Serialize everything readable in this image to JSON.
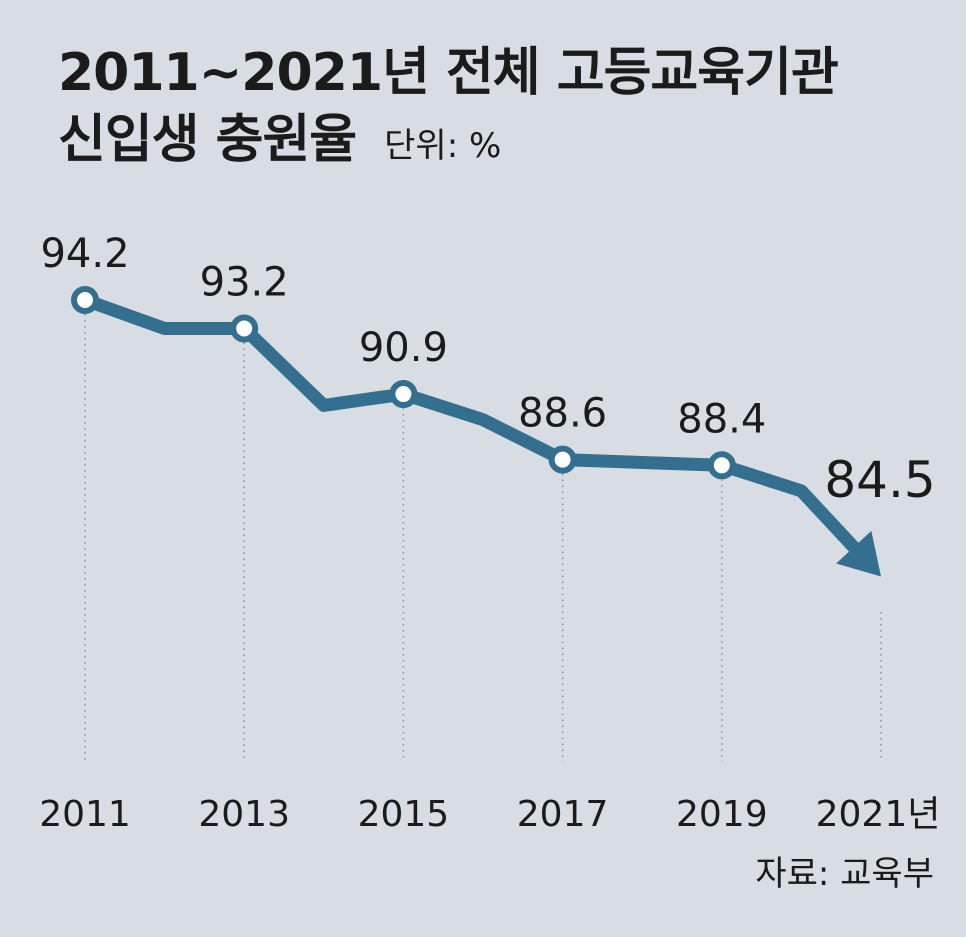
{
  "title": {
    "line1": "2011~2021년 전체 고등교육기관",
    "line2": "신입생 충원율",
    "unit": "단위: %"
  },
  "source": "자료: 교육부",
  "colors": {
    "background": "#d7dde2",
    "line": "#346f8f",
    "marker_fill": "#ffffff",
    "text": "#1b1b1b"
  },
  "chart_data": {
    "type": "line",
    "title": "2011~2021년 전체 고등교육기관 신입생 충원율",
    "ylabel": "",
    "xlabel": "",
    "unit": "%",
    "x": [
      2011,
      2012,
      2013,
      2014,
      2015,
      2016,
      2017,
      2018,
      2019,
      2020,
      2021
    ],
    "values": [
      94.2,
      93.2,
      93.2,
      90.5,
      90.9,
      90.0,
      88.6,
      88.5,
      88.4,
      87.5,
      84.5
    ],
    "labeled_points": [
      {
        "x": 2011,
        "y": 94.2,
        "label": "94.2"
      },
      {
        "x": 2013,
        "y": 93.2,
        "label": "93.2"
      },
      {
        "x": 2015,
        "y": 90.9,
        "label": "90.9"
      },
      {
        "x": 2017,
        "y": 88.6,
        "label": "88.6"
      },
      {
        "x": 2019,
        "y": 88.4,
        "label": "88.4"
      },
      {
        "x": 2021,
        "y": 84.5,
        "label": "84.5"
      }
    ],
    "tick_labels": [
      "2011",
      "2013",
      "2015",
      "2017",
      "2019",
      "2021년"
    ],
    "ylim": [
      83,
      95
    ],
    "grid": "dotted vertical guides at labeled years",
    "legend": "none",
    "end_marker": "arrow"
  }
}
